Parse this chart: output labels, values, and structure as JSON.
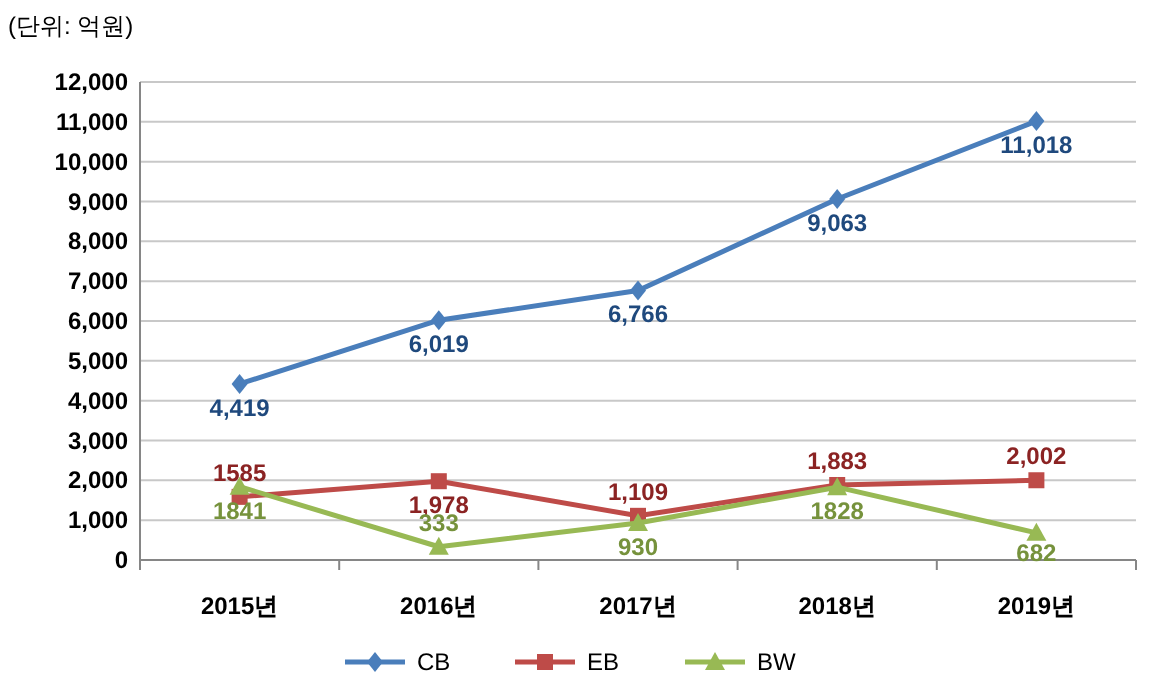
{
  "chart_data": {
    "type": "line",
    "title": "(단위: 억원)",
    "categories": [
      "2015년",
      "2016년",
      "2017년",
      "2018년",
      "2019년"
    ],
    "series": [
      {
        "name": "CB",
        "color": "#4a7ebb",
        "marker": "diamond",
        "values": [
          4419,
          6019,
          6766,
          9063,
          11018
        ],
        "value_labels": [
          "4,419",
          "6,019",
          "6,766",
          "9,063",
          "11,018"
        ]
      },
      {
        "name": "EB",
        "color": "#be4b48",
        "marker": "square",
        "values": [
          1585,
          1978,
          1109,
          1883,
          2002
        ],
        "value_labels": [
          "1585",
          "1,978",
          "1,109",
          "1,883",
          "2,002"
        ]
      },
      {
        "name": "BW",
        "color": "#98b954",
        "marker": "triangle",
        "values": [
          1841,
          333,
          930,
          1828,
          682
        ],
        "value_labels": [
          "1841",
          "333",
          "930",
          "1828",
          "682"
        ]
      }
    ],
    "ylim": [
      0,
      12000
    ],
    "yticks": [
      {
        "value": 0,
        "label": "0"
      },
      {
        "value": 1000,
        "label": "1,000"
      },
      {
        "value": 2000,
        "label": "2,000"
      },
      {
        "value": 3000,
        "label": "3,000"
      },
      {
        "value": 4000,
        "label": "4,000"
      },
      {
        "value": 5000,
        "label": "5,000"
      },
      {
        "value": 6000,
        "label": "6,000"
      },
      {
        "value": 7000,
        "label": "7,000"
      },
      {
        "value": 8000,
        "label": "8,000"
      },
      {
        "value": 9000,
        "label": "9,000"
      },
      {
        "value": 10000,
        "label": "10,000"
      },
      {
        "value": 11000,
        "label": "11,000"
      },
      {
        "value": 12000,
        "label": "12,000"
      }
    ],
    "grid": "y",
    "legend": "bottom"
  }
}
